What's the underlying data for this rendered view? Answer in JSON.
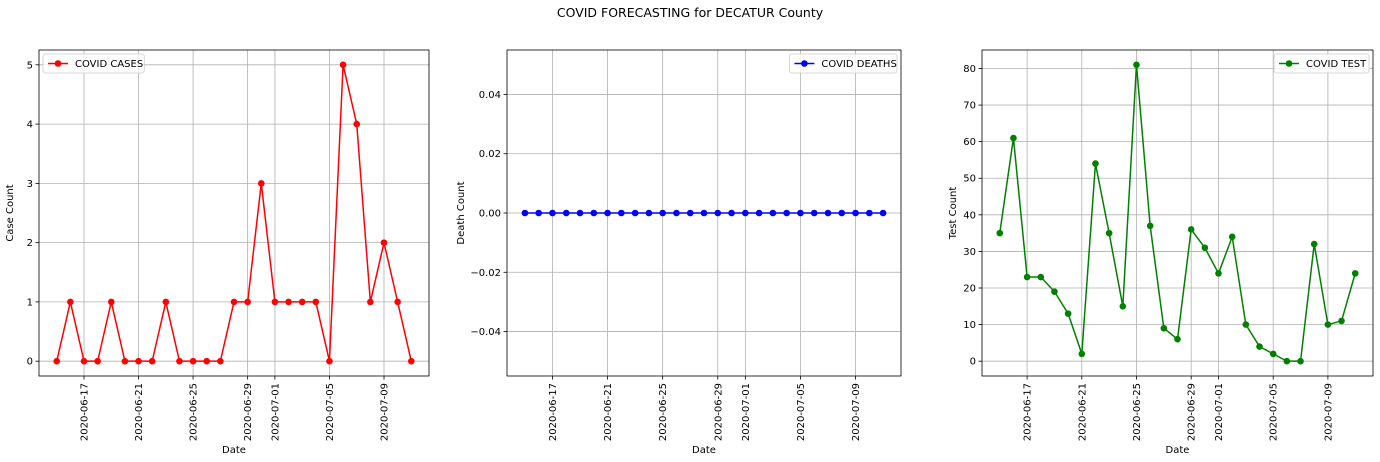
{
  "figure": {
    "title": "COVID FORECASTING for DECATUR County"
  },
  "chart_data": [
    {
      "type": "line",
      "xlabel": "Date",
      "ylabel": "Case Count",
      "legend": {
        "label": "COVID CASES",
        "placement": "top-left"
      },
      "color": "#ff0000",
      "x_start": "2020-06-15",
      "x": [
        "2020-06-15",
        "2020-06-16",
        "2020-06-17",
        "2020-06-18",
        "2020-06-19",
        "2020-06-20",
        "2020-06-21",
        "2020-06-22",
        "2020-06-23",
        "2020-06-24",
        "2020-06-25",
        "2020-06-26",
        "2020-06-27",
        "2020-06-28",
        "2020-06-29",
        "2020-06-30",
        "2020-07-01",
        "2020-07-02",
        "2020-07-03",
        "2020-07-04",
        "2020-07-05",
        "2020-07-06",
        "2020-07-07",
        "2020-07-08",
        "2020-07-09",
        "2020-07-10",
        "2020-07-11"
      ],
      "values": [
        0,
        1,
        0,
        0,
        1,
        0,
        0,
        0,
        1,
        0,
        0,
        0,
        0,
        1,
        1,
        3,
        1,
        1,
        1,
        1,
        0,
        5,
        4,
        1,
        2,
        1,
        0
      ],
      "x_ticks": [
        "2020-06-17",
        "2020-06-21",
        "2020-06-25",
        "2020-06-29",
        "2020-07-01",
        "2020-07-05",
        "2020-07-09"
      ],
      "y_ticks": [
        "0",
        "1",
        "2",
        "3",
        "4",
        "5"
      ],
      "ylim": [
        -0.25,
        5.25
      ],
      "grid": true
    },
    {
      "type": "line",
      "xlabel": "Date",
      "ylabel": "Death Count",
      "legend": {
        "label": "COVID DEATHS",
        "placement": "top-right"
      },
      "color": "#0000ff",
      "x_start": "2020-06-15",
      "x": [
        "2020-06-15",
        "2020-06-16",
        "2020-06-17",
        "2020-06-18",
        "2020-06-19",
        "2020-06-20",
        "2020-06-21",
        "2020-06-22",
        "2020-06-23",
        "2020-06-24",
        "2020-06-25",
        "2020-06-26",
        "2020-06-27",
        "2020-06-28",
        "2020-06-29",
        "2020-06-30",
        "2020-07-01",
        "2020-07-02",
        "2020-07-03",
        "2020-07-04",
        "2020-07-05",
        "2020-07-06",
        "2020-07-07",
        "2020-07-08",
        "2020-07-09",
        "2020-07-10",
        "2020-07-11"
      ],
      "values": [
        0,
        0,
        0,
        0,
        0,
        0,
        0,
        0,
        0,
        0,
        0,
        0,
        0,
        0,
        0,
        0,
        0,
        0,
        0,
        0,
        0,
        0,
        0,
        0,
        0,
        0,
        0
      ],
      "x_ticks": [
        "2020-06-17",
        "2020-06-21",
        "2020-06-25",
        "2020-06-29",
        "2020-07-01",
        "2020-07-05",
        "2020-07-09"
      ],
      "y_ticks": [
        "0.04",
        "0.02",
        "0.00",
        "−0.02",
        "−0.04"
      ],
      "y_tick_values": [
        0.04,
        0.02,
        0.0,
        -0.02,
        -0.04
      ],
      "ylim": [
        -0.055,
        0.055
      ],
      "grid": true
    },
    {
      "type": "line",
      "xlabel": "Date",
      "ylabel": "Test Count",
      "legend": {
        "label": "COVID TEST",
        "placement": "top-right"
      },
      "color": "#008000",
      "x_start": "2020-06-15",
      "x": [
        "2020-06-15",
        "2020-06-16",
        "2020-06-17",
        "2020-06-18",
        "2020-06-19",
        "2020-06-20",
        "2020-06-21",
        "2020-06-22",
        "2020-06-23",
        "2020-06-24",
        "2020-06-25",
        "2020-06-26",
        "2020-06-27",
        "2020-06-28",
        "2020-06-29",
        "2020-06-30",
        "2020-07-01",
        "2020-07-02",
        "2020-07-03",
        "2020-07-04",
        "2020-07-05",
        "2020-07-06",
        "2020-07-07",
        "2020-07-08",
        "2020-07-09",
        "2020-07-10",
        "2020-07-11"
      ],
      "values": [
        35,
        61,
        23,
        23,
        19,
        13,
        2,
        54,
        35,
        15,
        81,
        37,
        9,
        6,
        36,
        31,
        24,
        34,
        10,
        4,
        2,
        0,
        0,
        32,
        10,
        11,
        24
      ],
      "x_ticks": [
        "2020-06-17",
        "2020-06-21",
        "2020-06-25",
        "2020-06-29",
        "2020-07-01",
        "2020-07-05",
        "2020-07-09"
      ],
      "y_ticks": [
        "0",
        "10",
        "20",
        "30",
        "40",
        "50",
        "60",
        "70",
        "80"
      ],
      "ylim": [
        -4.05,
        85.05
      ],
      "grid": true
    }
  ]
}
